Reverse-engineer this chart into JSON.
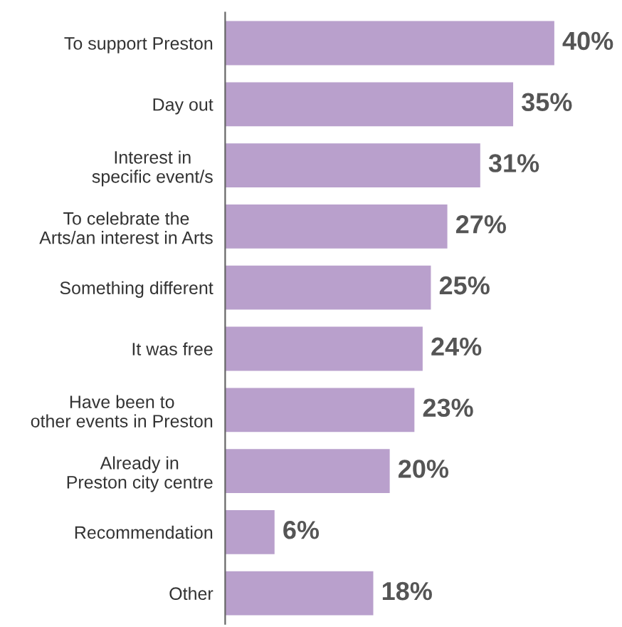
{
  "chart_data": {
    "type": "bar",
    "orientation": "horizontal",
    "categories": [
      "To support Preston",
      "Day out",
      "Interest in\nspecific event/s",
      "To celebrate the\nArts/an interest in Arts",
      "Something different",
      "It was free",
      "Have been to\nother events in Preston",
      "Already in\nPreston city centre",
      "Recommendation",
      "Other"
    ],
    "values": [
      40,
      35,
      31,
      27,
      25,
      24,
      23,
      20,
      6,
      18
    ],
    "value_labels": [
      "40%",
      "35%",
      "31%",
      "27%",
      "25%",
      "24%",
      "23%",
      "20%",
      "6%",
      "18%"
    ],
    "color": "#b9a0cc",
    "grid": false,
    "legend": false
  }
}
